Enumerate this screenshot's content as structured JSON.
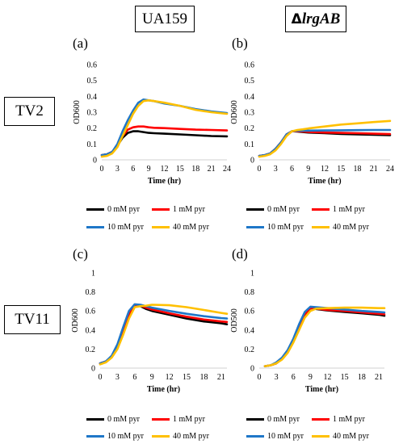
{
  "headers": {
    "col1": "UA159",
    "col2_delta": "Δ",
    "col2_gene": "lrgAB",
    "row1": "TV2",
    "row2": "TV11"
  },
  "panel_labels": [
    "(a)",
    "(b)",
    "(c)",
    "(d)"
  ],
  "colors": {
    "0 mM pyr": "#000000",
    "1 mM pyr": "#ff0000",
    "10 mM pyr": "#1f77c8",
    "40 mM pyr": "#ffc000"
  },
  "legend": {
    "items": [
      "0 mM pyr",
      "1 mM pyr",
      "10 mM pyr",
      "40 mM pyr"
    ]
  },
  "chart_data": [
    {
      "id": "a",
      "type": "line",
      "xlabel": "Time (hr)",
      "ylabel": "OD600",
      "xticks": [
        0,
        3,
        6,
        9,
        12,
        15,
        18,
        21,
        24
      ],
      "xlim": [
        0,
        24
      ],
      "yticks": [
        0,
        0.1,
        0.2,
        0.3,
        0.4,
        0.5,
        0.6
      ],
      "ylim": [
        0,
        0.6
      ],
      "x": [
        0,
        1,
        2,
        3,
        4,
        5,
        6,
        7,
        8,
        9,
        10,
        12,
        15,
        18,
        21,
        24
      ],
      "series": [
        {
          "name": "0 mM pyr",
          "values": [
            0.03,
            0.035,
            0.05,
            0.09,
            0.14,
            0.17,
            0.18,
            0.18,
            0.175,
            0.17,
            0.168,
            0.165,
            0.16,
            0.155,
            0.15,
            0.148
          ]
        },
        {
          "name": "1 mM pyr",
          "values": [
            0.03,
            0.035,
            0.05,
            0.09,
            0.15,
            0.19,
            0.205,
            0.21,
            0.21,
            0.205,
            0.202,
            0.2,
            0.195,
            0.19,
            0.188,
            0.185
          ]
        },
        {
          "name": "10 mM pyr",
          "values": [
            0.03,
            0.035,
            0.05,
            0.1,
            0.18,
            0.25,
            0.31,
            0.36,
            0.38,
            0.375,
            0.37,
            0.355,
            0.34,
            0.32,
            0.305,
            0.295
          ]
        },
        {
          "name": "40 mM pyr",
          "values": [
            0.02,
            0.025,
            0.04,
            0.08,
            0.15,
            0.22,
            0.29,
            0.34,
            0.37,
            0.375,
            0.37,
            0.36,
            0.34,
            0.315,
            0.3,
            0.29
          ]
        }
      ]
    },
    {
      "id": "b",
      "type": "line",
      "xlabel": "Time (hr)",
      "ylabel": "OD600",
      "xticks": [
        0,
        3,
        6,
        9,
        12,
        15,
        18,
        21,
        24
      ],
      "xlim": [
        0,
        24
      ],
      "yticks": [
        0,
        0.1,
        0.2,
        0.3,
        0.4,
        0.5,
        0.6
      ],
      "ylim": [
        0,
        0.6
      ],
      "x": [
        0,
        1,
        2,
        3,
        4,
        5,
        6,
        7,
        8,
        9,
        12,
        15,
        18,
        21,
        24
      ],
      "series": [
        {
          "name": "0 mM pyr",
          "values": [
            0.025,
            0.03,
            0.04,
            0.07,
            0.11,
            0.16,
            0.18,
            0.178,
            0.175,
            0.172,
            0.168,
            0.163,
            0.16,
            0.158,
            0.155
          ]
        },
        {
          "name": "1 mM pyr",
          "values": [
            0.025,
            0.03,
            0.04,
            0.07,
            0.11,
            0.16,
            0.18,
            0.18,
            0.178,
            0.176,
            0.172,
            0.17,
            0.168,
            0.165,
            0.162
          ]
        },
        {
          "name": "10 mM pyr",
          "values": [
            0.025,
            0.03,
            0.04,
            0.07,
            0.11,
            0.16,
            0.18,
            0.183,
            0.183,
            0.184,
            0.185,
            0.186,
            0.187,
            0.188,
            0.188
          ]
        },
        {
          "name": "40 mM pyr",
          "values": [
            0.02,
            0.025,
            0.035,
            0.06,
            0.1,
            0.15,
            0.18,
            0.188,
            0.192,
            0.198,
            0.21,
            0.222,
            0.23,
            0.238,
            0.245
          ]
        }
      ]
    },
    {
      "id": "c",
      "type": "line",
      "xlabel": "Time (hr)",
      "ylabel": "OD600",
      "xticks": [
        0,
        3,
        6,
        9,
        12,
        15,
        18,
        21
      ],
      "xlim": [
        0,
        22
      ],
      "yticks": [
        0,
        0.2,
        0.4,
        0.6,
        0.8,
        1
      ],
      "ylim": [
        0,
        1
      ],
      "x": [
        0,
        1,
        2,
        3,
        4,
        5,
        6,
        7,
        8,
        9,
        12,
        15,
        18,
        21,
        22
      ],
      "series": [
        {
          "name": "0 mM pyr",
          "values": [
            0.05,
            0.07,
            0.12,
            0.22,
            0.38,
            0.55,
            0.66,
            0.65,
            0.62,
            0.6,
            0.56,
            0.52,
            0.49,
            0.47,
            0.46
          ]
        },
        {
          "name": "1 mM pyr",
          "values": [
            0.05,
            0.07,
            0.12,
            0.23,
            0.4,
            0.56,
            0.66,
            0.655,
            0.635,
            0.615,
            0.575,
            0.54,
            0.51,
            0.49,
            0.485
          ]
        },
        {
          "name": "10 mM pyr",
          "values": [
            0.05,
            0.07,
            0.13,
            0.25,
            0.43,
            0.6,
            0.67,
            0.665,
            0.65,
            0.635,
            0.6,
            0.57,
            0.545,
            0.525,
            0.52
          ]
        },
        {
          "name": "40 mM pyr",
          "values": [
            0.04,
            0.06,
            0.11,
            0.2,
            0.35,
            0.52,
            0.64,
            0.65,
            0.655,
            0.665,
            0.66,
            0.64,
            0.61,
            0.58,
            0.57
          ]
        }
      ]
    },
    {
      "id": "d",
      "type": "line",
      "xlabel": "Time (hr)",
      "ylabel": "OD500",
      "xticks": [
        0,
        3,
        6,
        9,
        12,
        15,
        18,
        21
      ],
      "xlim": [
        0,
        22
      ],
      "yticks": [
        0,
        0.2,
        0.4,
        0.6,
        0.8,
        1
      ],
      "ylim": [
        0,
        1
      ],
      "x": [
        1,
        2,
        3,
        4,
        5,
        6,
        7,
        8,
        9,
        10,
        12,
        15,
        18,
        21,
        22
      ],
      "series": [
        {
          "name": "0 mM pyr",
          "values": [
            0.02,
            0.03,
            0.05,
            0.1,
            0.18,
            0.3,
            0.44,
            0.57,
            0.63,
            0.62,
            0.605,
            0.59,
            0.575,
            0.56,
            0.55
          ]
        },
        {
          "name": "1 mM pyr",
          "values": [
            0.02,
            0.03,
            0.05,
            0.1,
            0.17,
            0.29,
            0.43,
            0.56,
            0.63,
            0.625,
            0.61,
            0.6,
            0.585,
            0.57,
            0.565
          ]
        },
        {
          "name": "10 mM pyr",
          "values": [
            0.02,
            0.03,
            0.06,
            0.11,
            0.19,
            0.31,
            0.46,
            0.59,
            0.645,
            0.64,
            0.63,
            0.615,
            0.6,
            0.59,
            0.585
          ]
        },
        {
          "name": "40 mM pyr",
          "values": [
            0.02,
            0.03,
            0.05,
            0.09,
            0.16,
            0.27,
            0.4,
            0.53,
            0.6,
            0.625,
            0.63,
            0.635,
            0.635,
            0.63,
            0.63
          ]
        }
      ]
    }
  ]
}
